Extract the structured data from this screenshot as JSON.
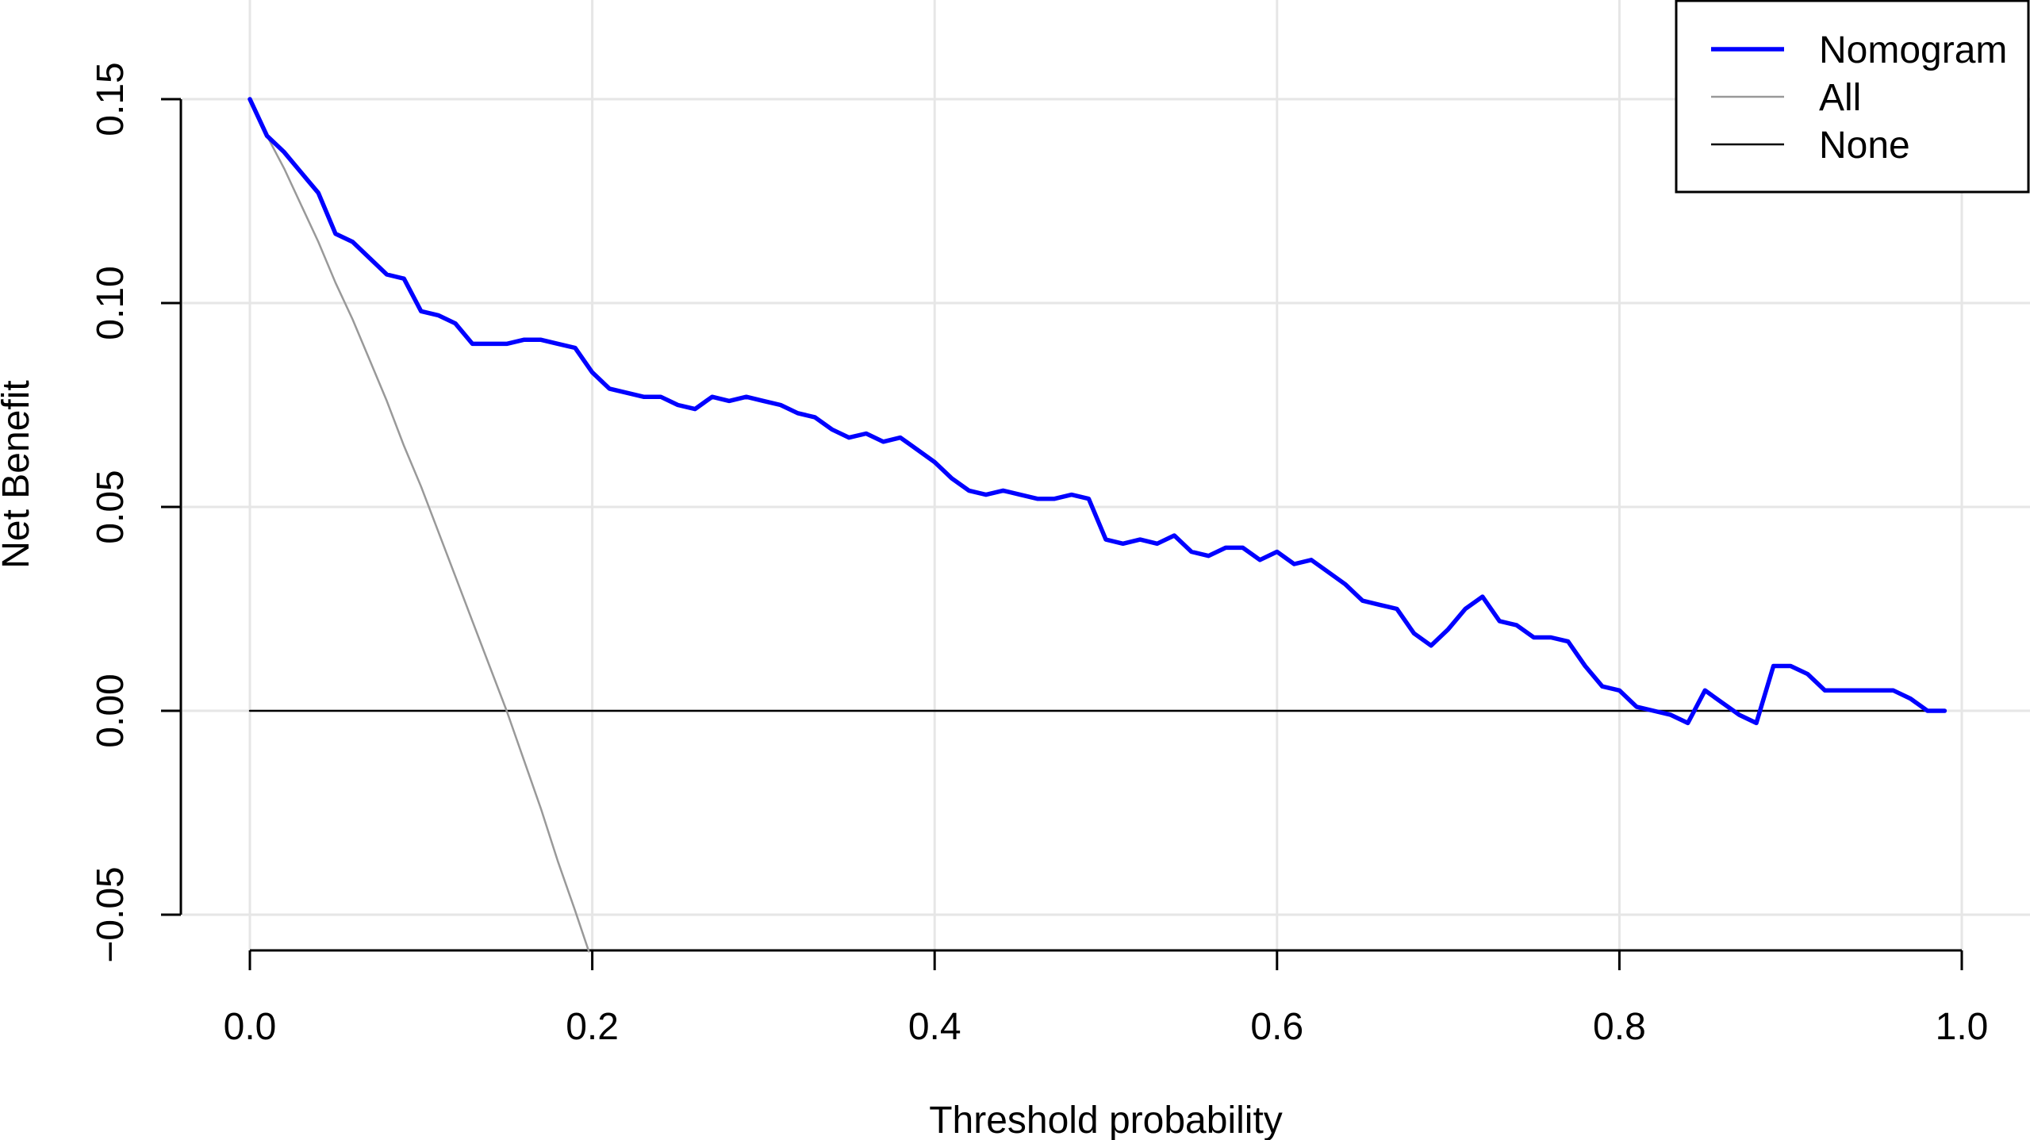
{
  "chart_data": {
    "type": "line",
    "title": "",
    "xlabel": "Threshold probability",
    "ylabel": "Net Benefit",
    "xlim": [
      0.0,
      1.0
    ],
    "ylim": [
      -0.05,
      0.15
    ],
    "x_ticks": [
      0.0,
      0.2,
      0.4,
      0.6,
      0.8,
      1.0
    ],
    "x_tick_labels": [
      "0.0",
      "0.2",
      "0.4",
      "0.6",
      "0.8",
      "1.0"
    ],
    "y_ticks": [
      -0.05,
      0.0,
      0.05,
      0.1,
      0.15
    ],
    "y_tick_labels": [
      "−0.05",
      "0.00",
      "0.05",
      "0.10",
      "0.15"
    ],
    "grid": true,
    "legend_position": "top-right",
    "series": [
      {
        "name": "Nomogram",
        "color": "#0000ff",
        "x": [
          0.0,
          0.01,
          0.02,
          0.03,
          0.04,
          0.05,
          0.06,
          0.07,
          0.08,
          0.09,
          0.1,
          0.11,
          0.12,
          0.13,
          0.14,
          0.15,
          0.16,
          0.17,
          0.18,
          0.19,
          0.2,
          0.21,
          0.22,
          0.23,
          0.24,
          0.25,
          0.26,
          0.27,
          0.28,
          0.29,
          0.3,
          0.31,
          0.32,
          0.33,
          0.34,
          0.35,
          0.36,
          0.37,
          0.38,
          0.39,
          0.4,
          0.41,
          0.42,
          0.43,
          0.44,
          0.45,
          0.46,
          0.47,
          0.48,
          0.49,
          0.5,
          0.51,
          0.52,
          0.53,
          0.54,
          0.55,
          0.56,
          0.57,
          0.58,
          0.59,
          0.6,
          0.61,
          0.62,
          0.63,
          0.64,
          0.65,
          0.66,
          0.67,
          0.68,
          0.69,
          0.7,
          0.71,
          0.72,
          0.73,
          0.74,
          0.75,
          0.76,
          0.77,
          0.78,
          0.79,
          0.8,
          0.81,
          0.82,
          0.83,
          0.84,
          0.85,
          0.86,
          0.87,
          0.88,
          0.89,
          0.9,
          0.91,
          0.92,
          0.93,
          0.94,
          0.95,
          0.96,
          0.97,
          0.98,
          0.99
        ],
        "values": [
          0.15,
          0.141,
          0.137,
          0.132,
          0.127,
          0.117,
          0.115,
          0.111,
          0.107,
          0.106,
          0.098,
          0.097,
          0.095,
          0.09,
          0.09,
          0.09,
          0.091,
          0.091,
          0.09,
          0.089,
          0.083,
          0.079,
          0.078,
          0.077,
          0.077,
          0.075,
          0.074,
          0.077,
          0.076,
          0.077,
          0.076,
          0.075,
          0.073,
          0.072,
          0.069,
          0.067,
          0.068,
          0.066,
          0.067,
          0.064,
          0.061,
          0.057,
          0.054,
          0.053,
          0.054,
          0.053,
          0.052,
          0.052,
          0.053,
          0.052,
          0.042,
          0.041,
          0.042,
          0.041,
          0.043,
          0.039,
          0.038,
          0.04,
          0.04,
          0.037,
          0.039,
          0.036,
          0.037,
          0.034,
          0.031,
          0.027,
          0.026,
          0.025,
          0.019,
          0.016,
          0.02,
          0.025,
          0.028,
          0.022,
          0.021,
          0.018,
          0.018,
          0.017,
          0.011,
          0.006,
          0.005,
          0.001,
          0.0,
          -0.001,
          -0.003,
          0.005,
          0.002,
          -0.001,
          -0.003,
          0.011,
          0.011,
          0.009,
          0.005,
          0.005,
          0.005,
          0.005,
          0.005,
          0.003,
          0.0,
          0.0
        ]
      },
      {
        "name": "All",
        "color": "#999999",
        "x": [
          0.01,
          0.02,
          0.03,
          0.04,
          0.05,
          0.06,
          0.07,
          0.08,
          0.09,
          0.1,
          0.11,
          0.12,
          0.13,
          0.14,
          0.15,
          0.16,
          0.17,
          0.18,
          0.19,
          0.198
        ],
        "values": [
          0.141,
          0.133,
          0.124,
          0.115,
          0.105,
          0.096,
          0.086,
          0.076,
          0.065,
          0.055,
          0.044,
          0.033,
          0.022,
          0.011,
          0.0,
          -0.012,
          -0.024,
          -0.037,
          -0.049,
          -0.059
        ]
      },
      {
        "name": "None",
        "color": "#000000",
        "x": [
          0.0,
          0.99
        ],
        "values": [
          0.0,
          0.0
        ]
      }
    ]
  }
}
